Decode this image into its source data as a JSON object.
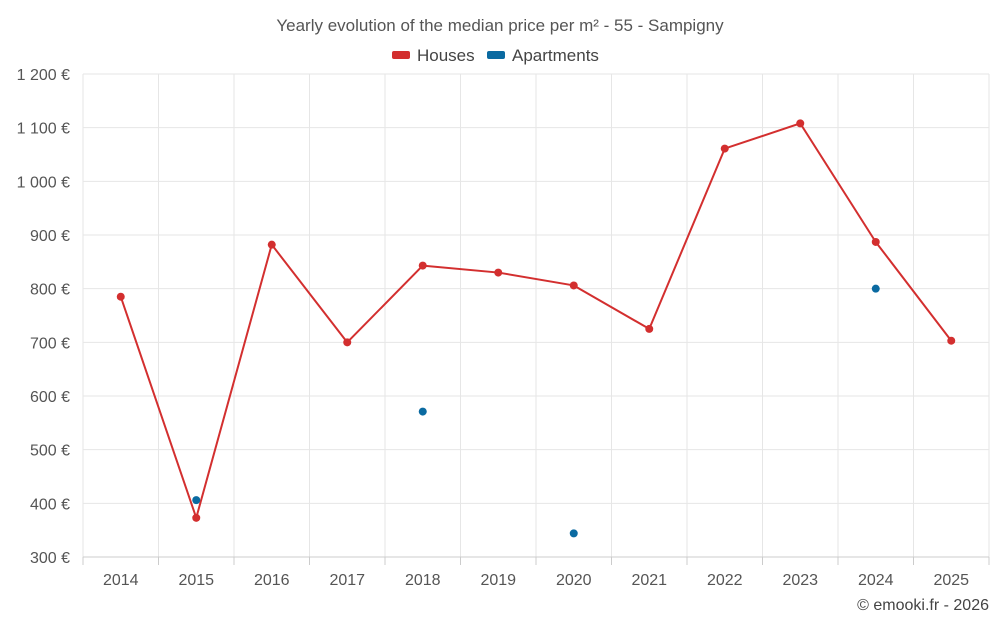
{
  "chart_data": {
    "type": "line",
    "title": "Yearly evolution of the median price per m² - 55 - Sampigny",
    "xlabel": "",
    "ylabel": "",
    "categories": [
      "2014",
      "2015",
      "2016",
      "2017",
      "2018",
      "2019",
      "2020",
      "2021",
      "2022",
      "2023",
      "2024",
      "2025"
    ],
    "ylim": [
      300,
      1200
    ],
    "yticks": [
      300,
      400,
      500,
      600,
      700,
      800,
      900,
      1000,
      1100,
      1200
    ],
    "ytick_labels": [
      "300 €",
      "400 €",
      "500 €",
      "600 €",
      "700 €",
      "800 €",
      "900 €",
      "1 000 €",
      "1 100 €",
      "1 200 €"
    ],
    "grid": true,
    "legend_position": "top-center",
    "series": [
      {
        "name": "Houses",
        "color": "#d32f2f",
        "style": "line-with-markers",
        "values": [
          785,
          373,
          882,
          700,
          843,
          830,
          806,
          725,
          1061,
          1108,
          887,
          703
        ]
      },
      {
        "name": "Apartments",
        "color": "#0a6aa1",
        "style": "markers-only",
        "values": [
          null,
          406,
          null,
          null,
          571,
          null,
          344,
          null,
          null,
          null,
          800,
          null
        ]
      }
    ]
  },
  "footer": {
    "credit": "© emooki.fr - 2026"
  }
}
